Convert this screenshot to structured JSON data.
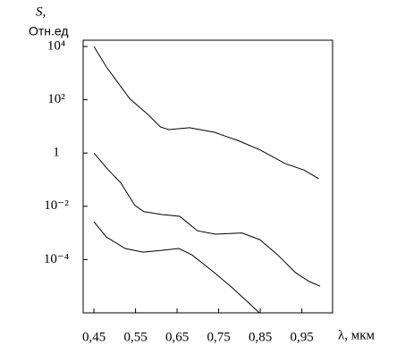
{
  "chart_data": {
    "type": "line",
    "y_label_symbol": "S,",
    "y_label": "Отн.ед",
    "x_label": "λ, мкм",
    "log_y": true,
    "xlim": [
      0.424,
      1.024
    ],
    "xticks": [
      {
        "value": 0.45,
        "label": "0,45"
      },
      {
        "value": 0.55,
        "label": "0,55"
      },
      {
        "value": 0.65,
        "label": "0,65"
      },
      {
        "value": 0.75,
        "label": "0,75"
      },
      {
        "value": 0.85,
        "label": "0,85"
      },
      {
        "value": 0.95,
        "label": "0,95"
      }
    ],
    "ylim": [
      1e-06,
      10000
    ],
    "yticks": [
      {
        "value": 10000,
        "label": "10⁴"
      },
      {
        "value": 100,
        "label": "10²"
      },
      1,
      {
        "value": 0.01,
        "label": "10⁻²"
      },
      {
        "value": 0.0001,
        "label": "10⁻⁴"
      }
    ],
    "series": [
      {
        "color": "#000000",
        "x": [
          0.45,
          0.48,
          0.536,
          0.58,
          0.61,
          0.63,
          0.68,
          0.74,
          0.8,
          0.85,
          0.91,
          0.955,
          0.99
        ],
        "values": [
          10000,
          1700,
          110,
          28,
          9.5,
          7.6,
          8.9,
          6,
          2.8,
          1.3,
          0.4,
          0.23,
          0.11
        ]
      },
      {
        "color": "#000000",
        "x": [
          0.45,
          0.48,
          0.515,
          0.548,
          0.57,
          0.613,
          0.656,
          0.677,
          0.699,
          0.742,
          0.806,
          0.849,
          0.892,
          0.935,
          0.968,
          0.994
        ],
        "values": [
          1,
          0.28,
          0.074,
          0.011,
          0.0063,
          0.0049,
          0.0042,
          0.0023,
          0.0012,
          0.0009,
          0.001,
          0.00056,
          0.00015,
          3.2e-05,
          1.5e-05,
          1e-05
        ]
      },
      {
        "color": "#000000",
        "x": [
          0.45,
          0.48,
          0.525,
          0.568,
          0.61,
          0.654,
          0.686,
          0.74,
          0.783,
          0.848
        ],
        "values": [
          0.0026,
          0.0007,
          0.00026,
          0.00019,
          0.00022,
          0.00026,
          0.00015,
          3.2e-05,
          8.7e-06,
          1e-06
        ]
      }
    ]
  }
}
